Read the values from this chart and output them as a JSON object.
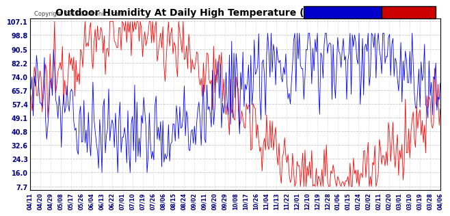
{
  "title": "Outdoor Humidity At Daily High Temperature (Past Year) 20130411",
  "copyright": "Copyright 2013 Cartronics.com",
  "yticks": [
    7.7,
    16.0,
    24.3,
    32.6,
    40.8,
    49.1,
    57.4,
    65.7,
    74.0,
    82.2,
    90.5,
    98.8,
    107.1
  ],
  "xtick_labels": [
    "04/11",
    "04/20",
    "04/29",
    "05/08",
    "05/17",
    "05/26",
    "06/04",
    "06/13",
    "06/22",
    "07/01",
    "07/10",
    "07/19",
    "07/26",
    "08/06",
    "08/15",
    "08/24",
    "09/02",
    "09/11",
    "09/20",
    "09/29",
    "10/08",
    "10/17",
    "10/26",
    "11/04",
    "11/13",
    "11/22",
    "12/01",
    "12/10",
    "12/19",
    "12/28",
    "01/06",
    "01/15",
    "01/24",
    "02/02",
    "02/11",
    "02/20",
    "03/01",
    "03/10",
    "03/19",
    "03/28",
    "04/06"
  ],
  "humidity_color": "#0000ff",
  "temp_color": "#ff0000",
  "background_color": "#ffffff",
  "grid_color": "#bbbbbb",
  "title_fontsize": 10,
  "legend_humidity_bg": "#0000cc",
  "legend_temp_bg": "#cc0000",
  "ylim": [
    5.5,
    109
  ],
  "n_days": 365
}
